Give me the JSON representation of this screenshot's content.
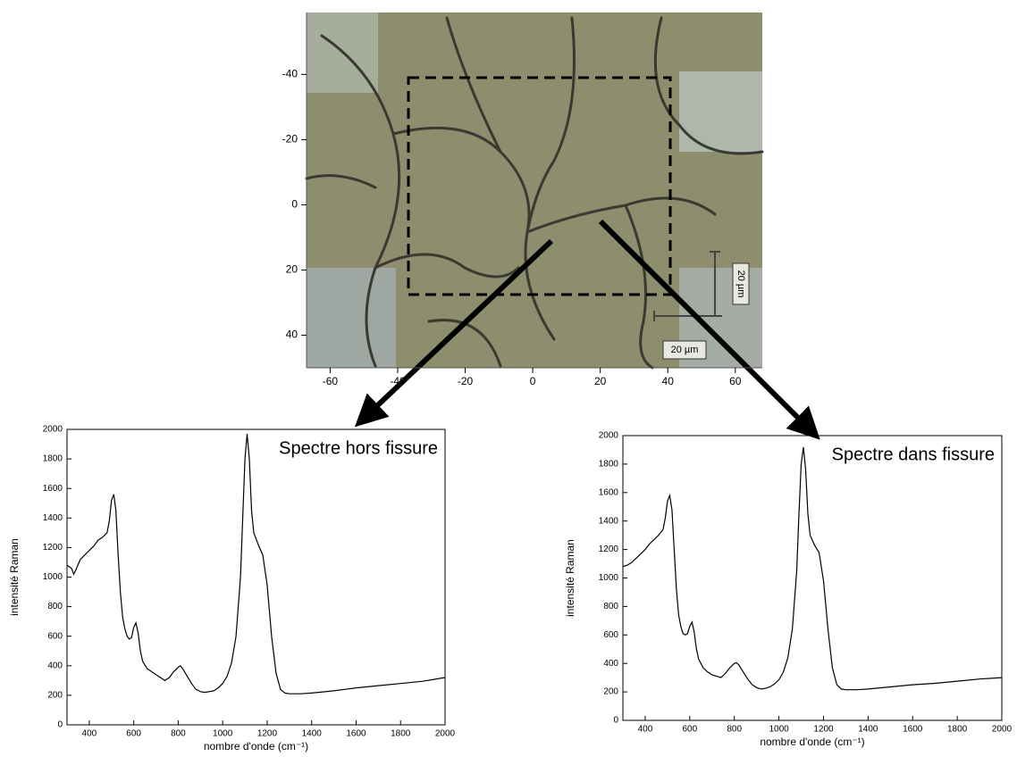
{
  "chart_data": [
    {
      "type": "image",
      "xlim": [
        -67,
        68
      ],
      "ylim": [
        50,
        -59
      ],
      "xticks": [
        -60,
        -40,
        -20,
        0,
        20,
        40,
        60
      ],
      "yticks": [
        -40,
        -20,
        0,
        20,
        40
      ],
      "annotations": [
        "20 µm",
        "20 µm"
      ]
    },
    {
      "type": "line",
      "annotation": "Spectre hors fissure",
      "xlabel": "nombre d'onde (cm⁻¹)",
      "ylabel": "intensité Raman",
      "xlim": [
        300,
        2000
      ],
      "ylim": [
        0,
        2000
      ],
      "xticks": [
        400,
        600,
        800,
        1000,
        1200,
        1400,
        1600,
        1800,
        2000
      ],
      "yticks": [
        0,
        200,
        400,
        600,
        800,
        1000,
        1200,
        1400,
        1600,
        1800,
        2000
      ],
      "color": "#000000",
      "x": [
        300,
        320,
        330,
        340,
        360,
        380,
        400,
        420,
        440,
        460,
        480,
        490,
        500,
        510,
        520,
        530,
        540,
        550,
        560,
        570,
        580,
        590,
        600,
        610,
        620,
        630,
        640,
        660,
        680,
        700,
        720,
        740,
        760,
        780,
        800,
        810,
        820,
        840,
        860,
        880,
        900,
        920,
        940,
        960,
        980,
        1000,
        1020,
        1040,
        1060,
        1080,
        1090,
        1100,
        1110,
        1120,
        1130,
        1140,
        1160,
        1180,
        1200,
        1220,
        1240,
        1260,
        1280,
        1300,
        1350,
        1400,
        1500,
        1600,
        1700,
        1800,
        1900,
        2000
      ],
      "values": [
        1080,
        1060,
        1020,
        1050,
        1120,
        1150,
        1180,
        1210,
        1250,
        1270,
        1300,
        1380,
        1520,
        1560,
        1450,
        1150,
        900,
        730,
        650,
        600,
        580,
        590,
        660,
        690,
        620,
        500,
        430,
        380,
        360,
        340,
        320,
        300,
        320,
        360,
        390,
        400,
        380,
        330,
        280,
        240,
        225,
        220,
        225,
        230,
        250,
        280,
        330,
        420,
        600,
        1000,
        1400,
        1800,
        1970,
        1800,
        1450,
        1300,
        1220,
        1150,
        950,
        600,
        350,
        240,
        215,
        210,
        210,
        215,
        230,
        250,
        265,
        280,
        295,
        320
      ]
    },
    {
      "type": "line",
      "annotation": "Spectre dans fissure",
      "xlabel": "nombre d'onde (cm⁻¹)",
      "ylabel": "intensité Raman",
      "xlim": [
        300,
        2000
      ],
      "ylim": [
        0,
        2000
      ],
      "xticks": [
        400,
        600,
        800,
        1000,
        1200,
        1400,
        1600,
        1800,
        2000
      ],
      "yticks": [
        0,
        200,
        400,
        600,
        800,
        1000,
        1200,
        1400,
        1600,
        1800,
        2000
      ],
      "color": "#000000",
      "x": [
        300,
        320,
        340,
        360,
        380,
        400,
        420,
        440,
        460,
        480,
        490,
        500,
        510,
        520,
        530,
        540,
        550,
        560,
        570,
        580,
        590,
        600,
        610,
        620,
        630,
        640,
        660,
        680,
        700,
        720,
        740,
        760,
        780,
        800,
        810,
        820,
        840,
        860,
        880,
        900,
        920,
        940,
        960,
        980,
        1000,
        1020,
        1040,
        1060,
        1080,
        1090,
        1100,
        1110,
        1120,
        1130,
        1140,
        1160,
        1180,
        1200,
        1220,
        1240,
        1260,
        1280,
        1300,
        1350,
        1400,
        1500,
        1600,
        1700,
        1800,
        1900,
        2000
      ],
      "values": [
        1080,
        1090,
        1110,
        1140,
        1170,
        1200,
        1240,
        1270,
        1300,
        1340,
        1420,
        1540,
        1580,
        1480,
        1200,
        920,
        740,
        660,
        610,
        600,
        610,
        660,
        690,
        620,
        500,
        430,
        370,
        340,
        320,
        310,
        300,
        330,
        370,
        400,
        405,
        390,
        340,
        290,
        250,
        230,
        220,
        225,
        235,
        255,
        285,
        340,
        440,
        640,
        1050,
        1450,
        1800,
        1920,
        1760,
        1450,
        1300,
        1230,
        1180,
        980,
        640,
        370,
        250,
        220,
        215,
        215,
        220,
        235,
        250,
        260,
        275,
        290,
        300
      ]
    }
  ]
}
